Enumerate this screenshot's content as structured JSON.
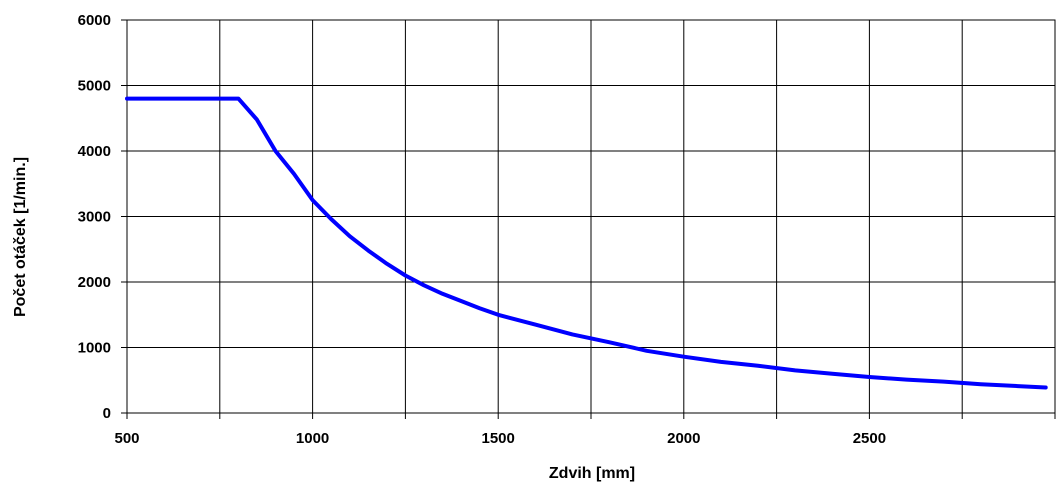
{
  "chart_data": {
    "type": "line",
    "title": "",
    "xlabel": "Zdvih [mm]",
    "ylabel": "Počet otáček  [1/min.]",
    "xlim": [
      500,
      3000
    ],
    "ylim": [
      0,
      6000
    ],
    "x_ticks": [
      500,
      1000,
      1500,
      2000,
      2500
    ],
    "x_tick_labels": [
      "500",
      "1000",
      "1500",
      "2000",
      "2500"
    ],
    "x_grid_step": 250,
    "y_ticks": [
      0,
      1000,
      2000,
      3000,
      4000,
      5000,
      6000
    ],
    "y_tick_labels": [
      "0",
      "1000",
      "2000",
      "3000",
      "4000",
      "5000",
      "6000"
    ],
    "grid": true,
    "legend": "none",
    "series": [
      {
        "color": "#0000ff",
        "x": [
          500,
          600,
          700,
          800,
          850,
          900,
          950,
          1000,
          1050,
          1100,
          1150,
          1200,
          1250,
          1300,
          1350,
          1400,
          1450,
          1500,
          1600,
          1700,
          1800,
          1900,
          2000,
          2100,
          2200,
          2300,
          2400,
          2500,
          2600,
          2700,
          2800,
          2900,
          2975
        ],
        "y": [
          4800,
          4800,
          4800,
          4800,
          4480,
          4000,
          3650,
          3250,
          2960,
          2700,
          2480,
          2280,
          2100,
          1950,
          1820,
          1710,
          1600,
          1500,
          1350,
          1200,
          1080,
          950,
          860,
          780,
          720,
          650,
          600,
          550,
          510,
          480,
          440,
          410,
          390
        ]
      }
    ]
  }
}
